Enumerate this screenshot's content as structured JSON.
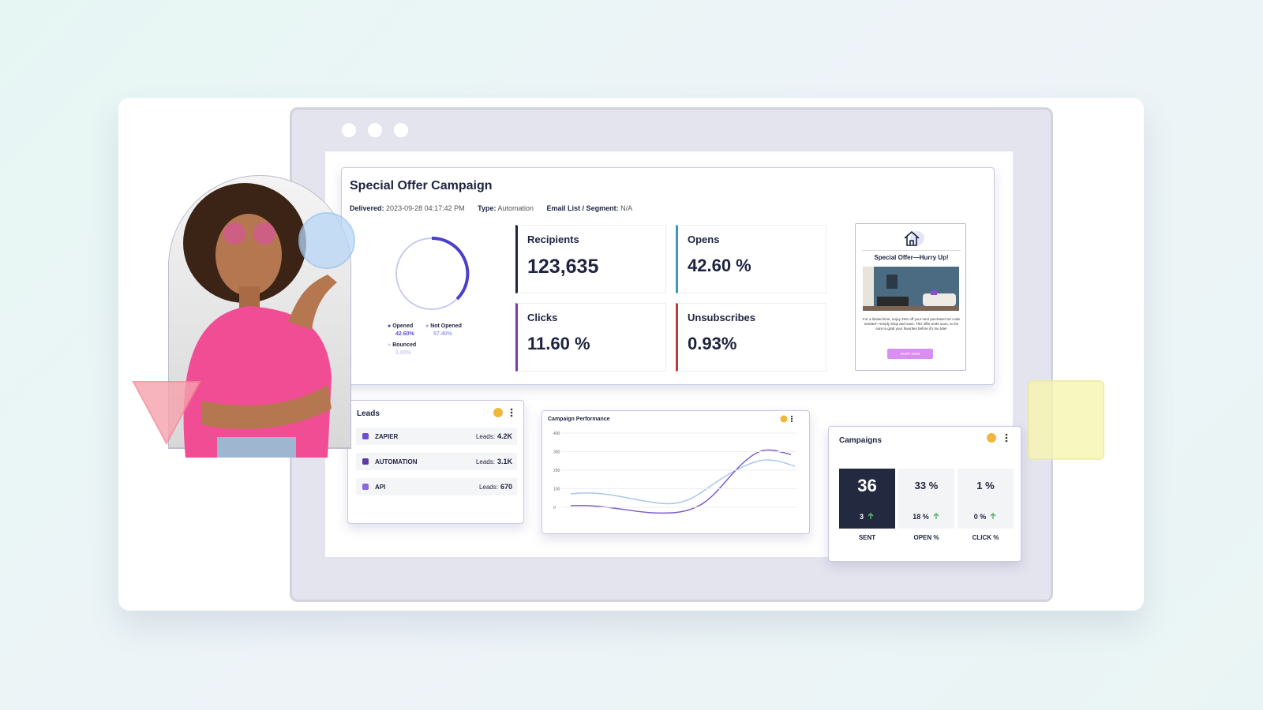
{
  "campaign": {
    "title": "Special Offer Campaign",
    "meta": [
      {
        "label": "Delivered:",
        "value": "2023-09-28 04:17:42 PM"
      },
      {
        "label": "Type:",
        "value": "Automation"
      },
      {
        "label": "Email List / Segment:",
        "value": "N/A"
      }
    ],
    "legend": [
      {
        "label": "Opened",
        "value": "42.60%"
      },
      {
        "label": "Not Opened",
        "value": "57.40%"
      },
      {
        "label": "Bounced",
        "value": "0.00%"
      }
    ],
    "stats": [
      {
        "label": "Recipients",
        "value": "123,635"
      },
      {
        "label": "Opens",
        "value": "42.60 %"
      },
      {
        "label": "Clicks",
        "value": "11.60 %"
      },
      {
        "label": "Unsubscribes",
        "value": "0.93%"
      }
    ],
    "preview": {
      "title": "Special Offer—Hurry Up!",
      "body": "For a limited time, enjoy 25% off your next purchase! No code needed—simply shop and save. This offer ends soon, so be sure to grab your favorites before it's too late!",
      "button": "SHOP NOW"
    }
  },
  "leads": {
    "title": "Leads",
    "rows": [
      {
        "name": "ZAPIER",
        "label": "Leads:",
        "value": "4.2K"
      },
      {
        "name": "AUTOMATION",
        "label": "Leads:",
        "value": "3.1K"
      },
      {
        "name": "API",
        "label": "Leads:",
        "value": "670"
      }
    ]
  },
  "performance": {
    "title": "Campaign Performance",
    "yticks": [
      "400",
      "300",
      "200",
      "100",
      "0"
    ]
  },
  "campaigns": {
    "title": "Campaigns",
    "tiles": [
      {
        "value": "36",
        "change": "3",
        "label": "SENT"
      },
      {
        "value": "33 %",
        "change": "18 %",
        "label": "OPEN %"
      },
      {
        "value": "1 %",
        "change": "0 %",
        "label": "CLICK %"
      }
    ]
  }
}
